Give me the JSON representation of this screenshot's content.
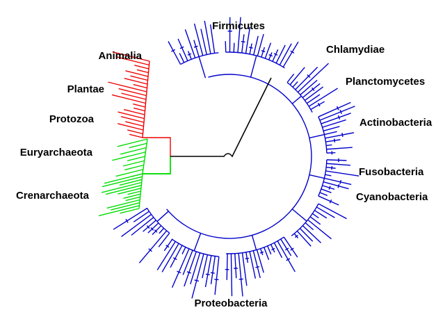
{
  "groups": [
    {
      "label": "Firmicutes",
      "color": "#0000cc"
    },
    {
      "label": "Chlamydiae",
      "color": "#0000cc"
    },
    {
      "label": "Planctomycetes",
      "color": "#0000cc"
    },
    {
      "label": "Actinobacteria",
      "color": "#0000cc"
    },
    {
      "label": "Fusobacteria",
      "color": "#0000cc"
    },
    {
      "label": "Cyanobacteria",
      "color": "#0000cc"
    },
    {
      "label": "Proteobacteria",
      "color": "#0000cc"
    },
    {
      "label": "Animalia",
      "color": "#ee0000"
    },
    {
      "label": "Plantae",
      "color": "#ee0000"
    },
    {
      "label": "Protozoa",
      "color": "#ee0000"
    },
    {
      "label": "Euryarchaeota",
      "color": "#00dd00"
    },
    {
      "label": "Crenarchaeota",
      "color": "#00dd00"
    }
  ]
}
